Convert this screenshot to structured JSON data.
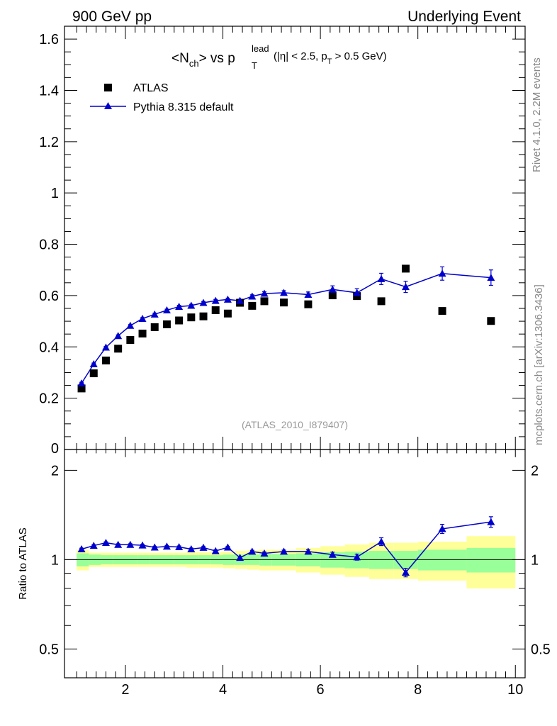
{
  "header": {
    "left": "900 GeV pp",
    "right": "Underlying Event"
  },
  "side": {
    "rivet": "Rivet 4.1.0,  2.2M events",
    "source": "mcplots.cern.ch [arXiv:1306.3436]"
  },
  "colors": {
    "data": "#000000",
    "mc": "#0000cc",
    "band_inner": "#99ff99",
    "band_outer": "#ffff99"
  },
  "chart_data": [
    {
      "type": "scatter",
      "panel": "main",
      "title_parts": {
        "open": "<N",
        "nsub": "ch",
        "mid": "> vs p",
        "psub": "T",
        "psup": "lead",
        "cut1": "(|η| < 2.5, p",
        "cutsub": "T",
        "cut2": " > 0.5 GeV)"
      },
      "analysis_label": "(ATLAS_2010_I879407)",
      "xlim": [
        0.75,
        10.2
      ],
      "ylim": [
        0,
        1.65
      ],
      "y_ticks": [
        "0",
        "0.2",
        "0.4",
        "0.6",
        "0.8",
        "1",
        "1.2",
        "1.4",
        "1.6"
      ],
      "legend_position": "top-left",
      "series": [
        {
          "name": "ATLAS",
          "marker": "square",
          "x": [
            1.1,
            1.35,
            1.6,
            1.85,
            2.1,
            2.35,
            2.6,
            2.85,
            3.1,
            3.35,
            3.6,
            3.85,
            4.1,
            4.35,
            4.6,
            4.85,
            5.25,
            5.75,
            6.25,
            6.75,
            7.25,
            7.75,
            8.5,
            9.5
          ],
          "y": [
            0.238,
            0.297,
            0.347,
            0.393,
            0.427,
            0.452,
            0.477,
            0.488,
            0.503,
            0.515,
            0.519,
            0.543,
            0.53,
            0.572,
            0.56,
            0.578,
            0.573,
            0.566,
            0.601,
            0.598,
            0.578,
            0.705,
            0.54,
            0.501
          ]
        },
        {
          "name": "Pythia 8.315 default",
          "marker": "triangle",
          "x": [
            1.1,
            1.35,
            1.6,
            1.85,
            2.1,
            2.35,
            2.6,
            2.85,
            3.1,
            3.35,
            3.6,
            3.85,
            4.1,
            4.35,
            4.6,
            4.85,
            5.25,
            5.75,
            6.25,
            6.75,
            7.25,
            7.75,
            8.5,
            9.5
          ],
          "y": [
            0.258,
            0.333,
            0.398,
            0.443,
            0.483,
            0.51,
            0.527,
            0.543,
            0.557,
            0.561,
            0.572,
            0.58,
            0.585,
            0.58,
            0.597,
            0.608,
            0.611,
            0.604,
            0.624,
            0.611,
            0.665,
            0.634,
            0.686,
            0.67
          ],
          "yerr": [
            0.004,
            0.004,
            0.004,
            0.004,
            0.004,
            0.004,
            0.004,
            0.004,
            0.005,
            0.005,
            0.005,
            0.005,
            0.005,
            0.006,
            0.006,
            0.007,
            0.008,
            0.01,
            0.014,
            0.016,
            0.022,
            0.022,
            0.026,
            0.03
          ]
        }
      ]
    },
    {
      "type": "line",
      "panel": "ratio",
      "ylabel": "Ratio to ATLAS",
      "xlim": [
        0.75,
        10.2
      ],
      "ylim": [
        0.4,
        2.35
      ],
      "y_ticks": [
        "0.5",
        "1",
        "2"
      ],
      "x_ticks": [
        "2",
        "4",
        "6",
        "8",
        "10"
      ],
      "log_y": true,
      "bands": {
        "edges": [
          1.0,
          1.25,
          1.5,
          1.75,
          2.0,
          2.25,
          2.5,
          2.75,
          3.0,
          3.25,
          3.5,
          3.75,
          4.0,
          4.25,
          4.5,
          4.75,
          5.0,
          5.5,
          6.0,
          6.5,
          7.0,
          7.5,
          8.0,
          9.0,
          10.0
        ],
        "inner_lo": [
          0.95,
          0.96,
          0.965,
          0.965,
          0.965,
          0.965,
          0.965,
          0.965,
          0.965,
          0.965,
          0.965,
          0.965,
          0.96,
          0.96,
          0.96,
          0.955,
          0.955,
          0.95,
          0.94,
          0.935,
          0.93,
          0.93,
          0.92,
          0.905
        ],
        "inner_hi": [
          1.05,
          1.04,
          1.035,
          1.035,
          1.035,
          1.035,
          1.035,
          1.035,
          1.035,
          1.035,
          1.035,
          1.035,
          1.04,
          1.04,
          1.04,
          1.045,
          1.045,
          1.05,
          1.06,
          1.065,
          1.07,
          1.07,
          1.08,
          1.095
        ],
        "outer_lo": [
          0.92,
          0.945,
          0.945,
          0.945,
          0.945,
          0.945,
          0.945,
          0.945,
          0.945,
          0.94,
          0.94,
          0.94,
          0.935,
          0.93,
          0.925,
          0.92,
          0.92,
          0.905,
          0.89,
          0.875,
          0.86,
          0.86,
          0.85,
          0.8
        ],
        "outer_hi": [
          1.08,
          1.055,
          1.055,
          1.055,
          1.055,
          1.055,
          1.055,
          1.055,
          1.055,
          1.06,
          1.06,
          1.06,
          1.065,
          1.07,
          1.075,
          1.08,
          1.08,
          1.095,
          1.11,
          1.125,
          1.14,
          1.14,
          1.15,
          1.2
        ]
      },
      "series": [
        {
          "name": "Pythia 8.315 default / ATLAS",
          "marker": "triangle",
          "x": [
            1.1,
            1.35,
            1.6,
            1.85,
            2.1,
            2.35,
            2.6,
            2.85,
            3.1,
            3.35,
            3.6,
            3.85,
            4.1,
            4.35,
            4.6,
            4.85,
            5.25,
            5.75,
            6.25,
            6.75,
            7.25,
            7.75,
            8.5,
            9.5
          ],
          "y": [
            1.085,
            1.115,
            1.14,
            1.123,
            1.123,
            1.118,
            1.1,
            1.108,
            1.103,
            1.085,
            1.098,
            1.07,
            1.1,
            1.015,
            1.065,
            1.05,
            1.065,
            1.065,
            1.04,
            1.02,
            1.15,
            0.905,
            1.27,
            1.34
          ],
          "yerr": [
            0.008,
            0.008,
            0.008,
            0.008,
            0.008,
            0.008,
            0.008,
            0.008,
            0.009,
            0.009,
            0.009,
            0.009,
            0.009,
            0.01,
            0.01,
            0.011,
            0.012,
            0.015,
            0.02,
            0.024,
            0.035,
            0.03,
            0.045,
            0.055
          ]
        }
      ]
    }
  ]
}
